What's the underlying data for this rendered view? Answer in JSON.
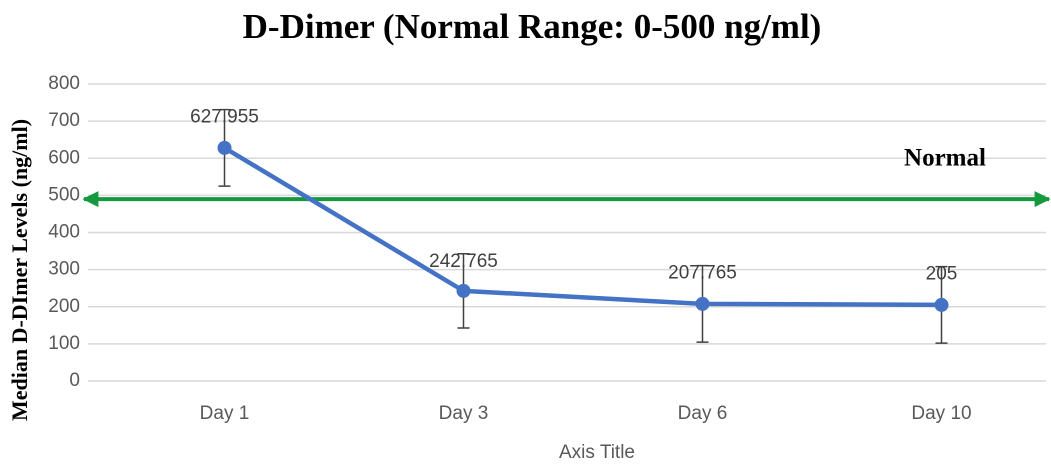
{
  "chart_data": {
    "type": "line",
    "title": "D-Dimer (Normal Range: 0-500 ng/ml)",
    "y_label": "Median D-DImer Levels (ng/ml)",
    "x_label": "Axis Title",
    "categories": [
      "Day 1",
      "Day 3",
      "Day 6",
      "Day 10"
    ],
    "values": [
      627.955,
      242.765,
      207.765,
      205
    ],
    "errors": [
      103,
      100,
      103,
      103
    ],
    "color": "#4472c4",
    "reference_line": {
      "value": 490,
      "label": "Normal",
      "color": "#14993e"
    },
    "ylim": [
      0,
      800
    ],
    "yticks": [
      0,
      100,
      200,
      300,
      400,
      500,
      600,
      700,
      800
    ],
    "grid": true
  }
}
